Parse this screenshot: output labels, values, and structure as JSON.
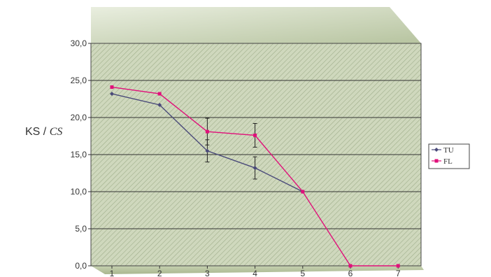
{
  "chart_data": {
    "type": "line",
    "title": "",
    "xlabel": "",
    "ylabel_main": "KS / ",
    "ylabel_italic": "CS",
    "categories": [
      "1",
      "2",
      "3",
      "4",
      "5",
      "6",
      "7"
    ],
    "x": [
      1,
      2,
      3,
      4,
      5,
      6,
      7
    ],
    "y_ticks": [
      "0,0",
      "5,0",
      "10,0",
      "15,0",
      "20,0",
      "25,0",
      "30,0"
    ],
    "ylim": [
      0,
      30
    ],
    "grid": "horizontal",
    "legend_position": "right",
    "series": [
      {
        "name": "TU",
        "color": "#4a4a7a",
        "marker": "diamond",
        "values": [
          23.2,
          21.7,
          15.5,
          13.2,
          10.0,
          null,
          null
        ],
        "error": [
          0,
          0,
          1.5,
          1.5,
          0,
          null,
          null
        ]
      },
      {
        "name": "FL",
        "color": "#e0107a",
        "marker": "square",
        "values": [
          24.1,
          23.2,
          18.1,
          17.6,
          10.0,
          0.0,
          0.0
        ],
        "error": [
          0,
          0,
          1.8,
          1.6,
          0,
          0,
          0
        ]
      }
    ]
  }
}
